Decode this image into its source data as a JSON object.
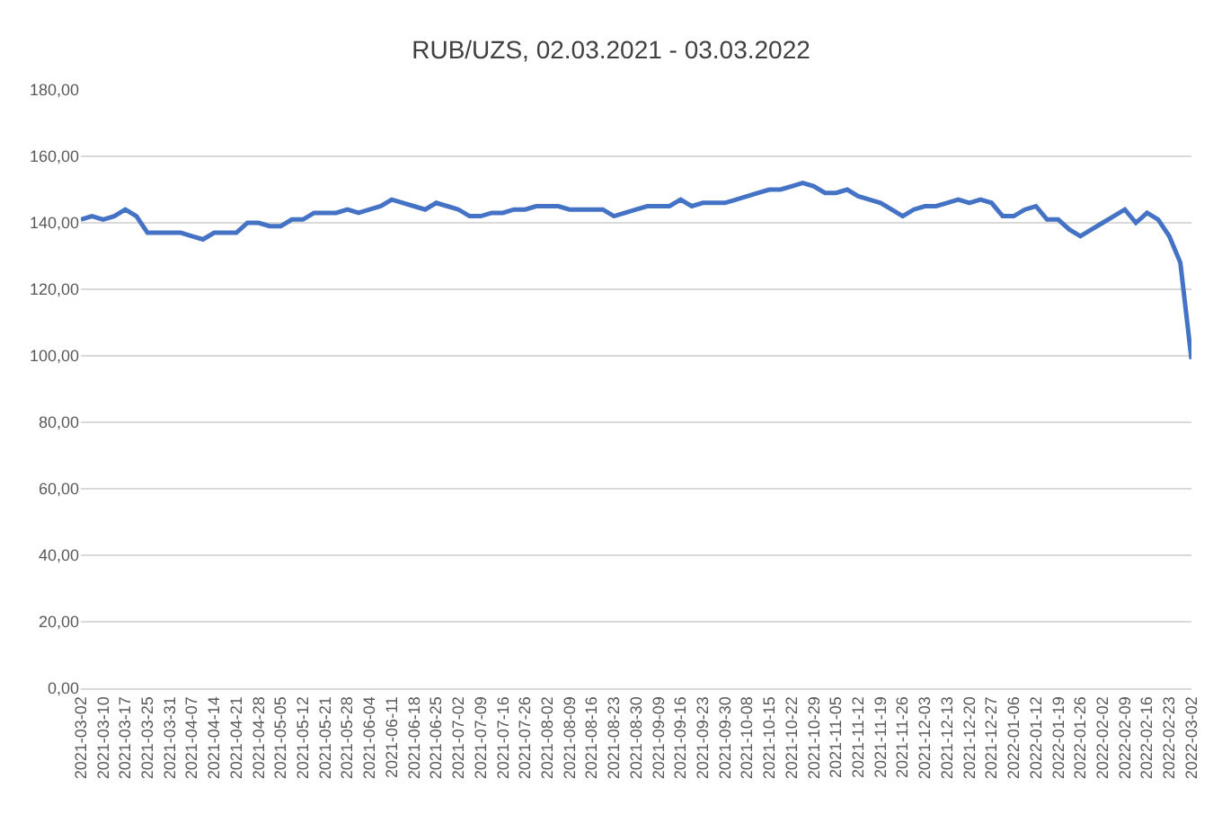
{
  "chart_data": {
    "type": "line",
    "title": "RUB/UZS, 02.03.2021 - 03.03.2022",
    "categories": [
      "2021-03-02",
      null,
      "2021-03-10",
      null,
      "2021-03-17",
      null,
      "2021-03-25",
      null,
      "2021-03-31",
      null,
      "2021-04-07",
      null,
      "2021-04-14",
      null,
      "2021-04-21",
      null,
      "2021-04-28",
      null,
      "2021-05-05",
      null,
      "2021-05-12",
      null,
      "2021-05-21",
      null,
      "2021-05-28",
      null,
      "2021-06-04",
      null,
      "2021-06-11",
      null,
      "2021-06-18",
      null,
      "2021-06-25",
      null,
      "2021-07-02",
      null,
      "2021-07-09",
      null,
      "2021-07-16",
      null,
      "2021-07-26",
      null,
      "2021-08-02",
      null,
      "2021-08-09",
      null,
      "2021-08-16",
      null,
      "2021-08-23",
      null,
      "2021-08-30",
      null,
      "2021-09-09",
      null,
      "2021-09-16",
      null,
      "2021-09-23",
      null,
      "2021-09-30",
      null,
      "2021-10-08",
      null,
      "2021-10-15",
      null,
      "2021-10-22",
      null,
      "2021-10-29",
      null,
      "2021-11-05",
      null,
      "2021-11-12",
      null,
      "2021-11-19",
      null,
      "2021-11-26",
      null,
      "2021-12-03",
      null,
      "2021-12-13",
      null,
      "2021-12-20",
      null,
      "2021-12-27",
      null,
      "2022-01-06",
      null,
      "2022-01-12",
      null,
      "2022-01-19",
      null,
      "2022-01-26",
      null,
      "2022-02-02",
      null,
      "2022-02-09",
      null,
      "2022-02-16",
      null,
      "2022-02-23",
      null,
      "2022-03-02"
    ],
    "series": [
      {
        "color": "#4472c4",
        "values": [
          141,
          142,
          141,
          142,
          144,
          142,
          137,
          137,
          137,
          137,
          136,
          135,
          137,
          137,
          137,
          140,
          140,
          139,
          139,
          141,
          141,
          143,
          143,
          143,
          144,
          143,
          144,
          145,
          147,
          146,
          145,
          144,
          146,
          145,
          144,
          142,
          142,
          143,
          143,
          144,
          144,
          145,
          145,
          145,
          144,
          144,
          144,
          144,
          142,
          143,
          144,
          145,
          145,
          145,
          147,
          145,
          146,
          146,
          146,
          147,
          148,
          149,
          150,
          150,
          151,
          152,
          151,
          149,
          149,
          150,
          148,
          147,
          146,
          144,
          142,
          144,
          145,
          145,
          146,
          147,
          146,
          147,
          146,
          142,
          142,
          144,
          145,
          141,
          141,
          138,
          136,
          138,
          140,
          142,
          144,
          140,
          143,
          141,
          136,
          128,
          99
        ]
      }
    ],
    "ylim": [
      0,
      180
    ],
    "yticks": [
      {
        "value": 0,
        "label": "0,00"
      },
      {
        "value": 20,
        "label": "20,00"
      },
      {
        "value": 40,
        "label": "40,00"
      },
      {
        "value": 60,
        "label": "60,00"
      },
      {
        "value": 80,
        "label": "80,00"
      },
      {
        "value": 100,
        "label": "100,00"
      },
      {
        "value": 120,
        "label": "120,00"
      },
      {
        "value": 140,
        "label": "140,00"
      },
      {
        "value": 160,
        "label": "160,00"
      },
      {
        "value": 180,
        "label": "180,00"
      }
    ],
    "grid": "y",
    "marker": "none",
    "line_style": "solid"
  }
}
